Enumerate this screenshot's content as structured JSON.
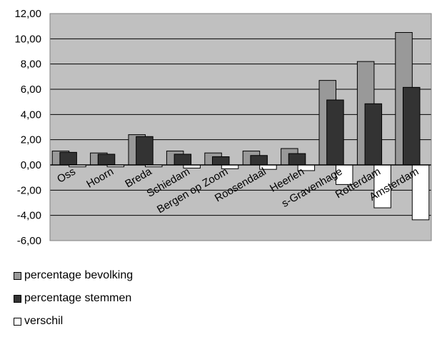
{
  "chart_data": {
    "type": "bar",
    "categories": [
      "Oss",
      "Hoorn",
      "Breda",
      "Schiedam",
      "Bergen op Zoom",
      "Roosendaal",
      "Heerlen",
      "s-Gravenhage",
      "Rotterdam",
      "Amsterdam"
    ],
    "series": [
      {
        "name": "percentage bevolking",
        "color": "#999999",
        "values": [
          1.1,
          0.95,
          2.4,
          1.1,
          0.95,
          1.1,
          1.3,
          6.7,
          8.2,
          10.5
        ]
      },
      {
        "name": "percentage stemmen",
        "color": "#333333",
        "values": [
          1.0,
          0.85,
          2.25,
          0.85,
          0.65,
          0.75,
          0.9,
          5.15,
          4.85,
          6.15
        ]
      },
      {
        "name": "verschil",
        "color": "#ffffff",
        "values": [
          -0.15,
          -0.15,
          -0.15,
          -0.25,
          -0.3,
          -0.35,
          -0.45,
          -1.55,
          -3.4,
          -4.35
        ]
      }
    ],
    "ylim": [
      -6,
      12
    ],
    "yticks": [
      "-6,00",
      "-4,00",
      "-2,00",
      "0,00",
      "2,00",
      "4,00",
      "6,00",
      "8,00",
      "10,00",
      "12,00"
    ],
    "plot_background": "#c0c0c0",
    "grid": true,
    "legend_position": "bottom-left"
  }
}
